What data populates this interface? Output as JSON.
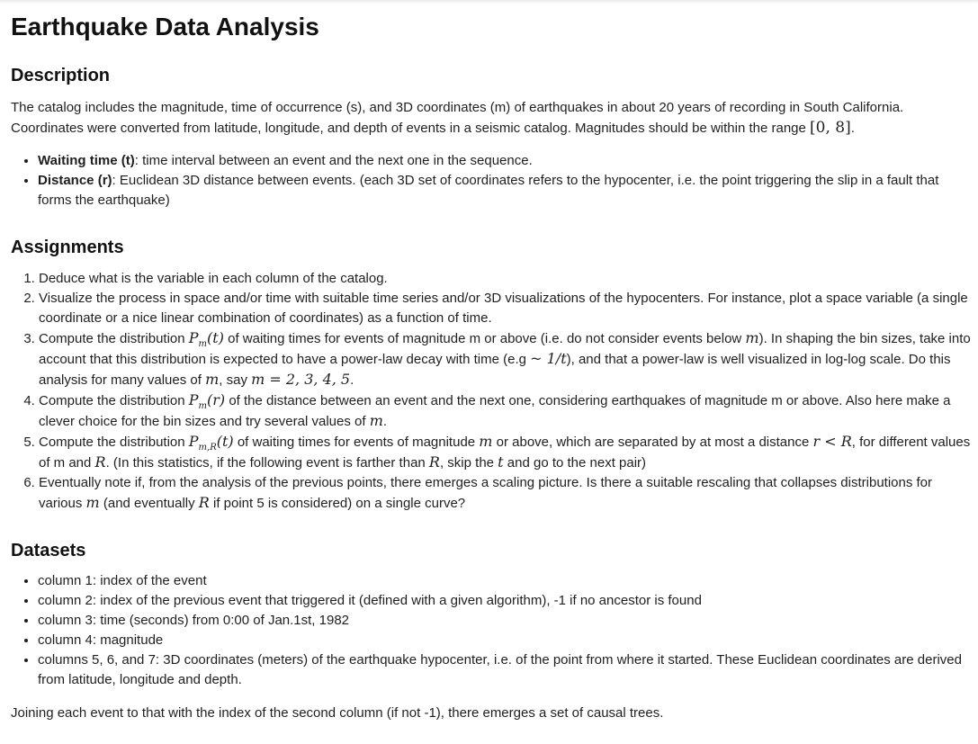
{
  "title": "Earthquake Data Analysis",
  "description": {
    "heading": "Description",
    "paragraph": {
      "text_before": "The catalog includes the magnitude, time of occurrence (s), and 3D coordinates (m) of earthquakes in about 20 years of recording in South California. Coordinates were converted from latitude, longitude, and depth of events in a seismic catalog. Magnitudes should be within the range ",
      "range": "[0, 8]",
      "text_after": "."
    },
    "bullets": [
      {
        "term": "Waiting time (t)",
        "text": ": time interval between an event and the next one in the sequence."
      },
      {
        "term": "Distance (r)",
        "text": ": Euclidean 3D distance between events. (each 3D set of coordinates refers to the hypocenter, i.e. the point triggering the slip in a fault that forms the earthquake)"
      }
    ]
  },
  "assignments": {
    "heading": "Assignments",
    "items": {
      "a1": "Deduce what is the variable in each column of the catalog.",
      "a2": "Visualize the process in space and/or time with suitable time series and/or 3D visualizations of the hypocenters. For instance, plot a space variable (a single coordinate or a nice linear combination of coordinates) as a function of time.",
      "a3": {
        "t1": "Compute the distribution ",
        "P": "P",
        "sub_m": "m",
        "arg_t": "(t)",
        "t2": " of waiting times for events of magnitude m or above (i.e. do not consider events below ",
        "m": "m",
        "t3": "). In shaping the bin sizes, take into account that this distribution is expected to have a power-law decay with time (e.g ",
        "sim": "~ 1/t",
        "t4": "), and that a power-law is well visualized in log-log scale. Do this analysis for many values of ",
        "m2": "m",
        "t5": ", say ",
        "mvals": "m = 2, 3, 4, 5",
        "t6": "."
      },
      "a4": {
        "t1": "Compute the distribution ",
        "P": "P",
        "sub_m": "m",
        "arg_r": "(r)",
        "t2": " of the distance between an event and the next one, considering earthquakes of magnitude m or above. Also here make a clever choice for the bin sizes and try several values of ",
        "m": "m",
        "t3": "."
      },
      "a5": {
        "t1": "Compute the distribution ",
        "P": "P",
        "sub_mR": "m,R",
        "arg_t": "(t)",
        "t2": " of waiting times for events of magnitude ",
        "m": "m",
        "t3": " or above, which are separated by at most a distance ",
        "rR": "r < R",
        "t4": ", for different values of m and ",
        "R": "R",
        "t5": ". (In this statistics, if the following event is farther than ",
        "R2": "R",
        "t6": ", skip the ",
        "t": "t",
        "t7": " and go to the next pair)"
      },
      "a6": {
        "t1": "Eventually note if, from the analysis of the previous points, there emerges a scaling picture. Is there a suitable rescaling that collapses distributions for various ",
        "m": "m",
        "t2": " (and eventually ",
        "R": "R",
        "t3": " if point 5 is considered) on a single curve?"
      }
    }
  },
  "datasets": {
    "heading": "Datasets",
    "items": [
      "column 1: index of the event",
      "column 2: index of the previous event that triggered it (defined with a given algorithm), -1 if no ancestor is found",
      "column 3: time (seconds) from 0:00 of Jan.1st, 1982",
      "column 4: magnitude",
      "columns 5, 6, and 7: 3D coordinates (meters) of the earthquake hypocenter, i.e. of the point from where it started. These Euclidean coordinates are derived from latitude, longitude and depth."
    ],
    "footer": "Joining each event to that with the index of the second column (if not -1), there emerges a set of causal trees."
  }
}
